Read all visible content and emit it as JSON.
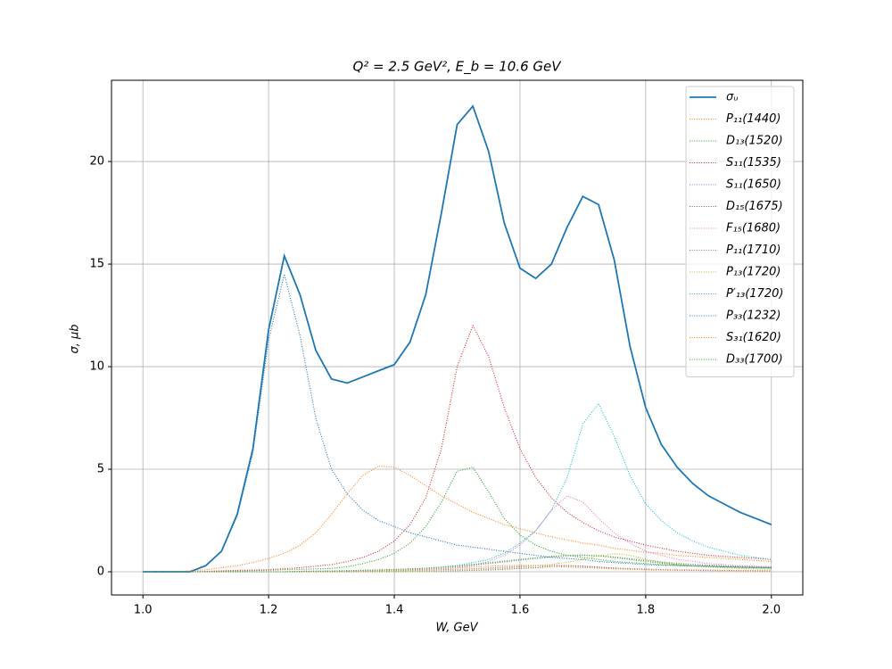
{
  "chart_data": {
    "type": "line",
    "title": "Q² = 2.5 GeV²,  E_b = 10.6 GeV",
    "xlabel": "W, GeV",
    "ylabel": "σ, μb",
    "xlim": [
      0.95,
      2.05
    ],
    "ylim": [
      -1.13,
      23.96
    ],
    "xticks": [
      {
        "value": 1,
        "label": "1.0"
      },
      1.2,
      1.4,
      1.6,
      1.8,
      {
        "value": 2,
        "label": "2.0"
      }
    ],
    "yticks": [
      0,
      5,
      10,
      15,
      20
    ],
    "grid": true,
    "legend": "upper right",
    "x": [
      1,
      1.025,
      1.05,
      1.075,
      1.1,
      1.125,
      1.15,
      1.175,
      1.2,
      1.225,
      1.25,
      1.275,
      1.3,
      1.325,
      1.35,
      1.375,
      1.4,
      1.425,
      1.45,
      1.475,
      1.5,
      1.525,
      1.55,
      1.575,
      1.6,
      1.625,
      1.65,
      1.675,
      1.7,
      1.725,
      1.75,
      1.775,
      1.8,
      1.825,
      1.85,
      1.875,
      1.9,
      1.925,
      1.95,
      1.975,
      2
    ],
    "series": [
      {
        "name": "σᵤ",
        "color": "#1f77b4",
        "style": "solid",
        "values": [
          0,
          0,
          0,
          0,
          0.3,
          1.0,
          2.8,
          6.0,
          11.8,
          15.4,
          13.5,
          10.8,
          9.4,
          9.2,
          9.5,
          9.8,
          10.1,
          11.2,
          13.5,
          17.5,
          21.8,
          22.7,
          20.5,
          17.0,
          14.8,
          14.3,
          15.0,
          16.8,
          18.3,
          17.9,
          15.2,
          11.0,
          8.0,
          6.2,
          5.1,
          4.3,
          3.7,
          3.3,
          2.9,
          2.6,
          2.3
        ]
      },
      {
        "name": "P₁₁(1440)",
        "color": "#ff7f0e",
        "style": "dotted",
        "values": [
          0,
          0,
          0,
          0.05,
          0.1,
          0.2,
          0.3,
          0.45,
          0.65,
          0.9,
          1.3,
          1.9,
          2.8,
          3.8,
          4.7,
          5.15,
          5.1,
          4.7,
          4.2,
          3.7,
          3.3,
          2.9,
          2.6,
          2.3,
          2.1,
          1.9,
          1.7,
          1.55,
          1.4,
          1.3,
          1.15,
          1.05,
          0.95,
          0.9,
          0.8,
          0.75,
          0.7,
          0.65,
          0.6,
          0.55,
          0.5
        ]
      },
      {
        "name": "D₁₃(1520)",
        "color": "#2ca02c",
        "style": "dotted",
        "values": [
          0,
          0,
          0,
          0,
          0,
          0.02,
          0.04,
          0.06,
          0.08,
          0.1,
          0.12,
          0.14,
          0.16,
          0.25,
          0.4,
          0.6,
          0.9,
          1.4,
          2.2,
          3.4,
          4.9,
          5.1,
          3.9,
          2.6,
          1.8,
          1.3,
          1.0,
          0.8,
          0.7,
          0.6,
          0.5,
          0.45,
          0.4,
          0.35,
          0.32,
          0.3,
          0.28,
          0.26,
          0.24,
          0.22,
          0.2
        ]
      },
      {
        "name": "S₁₁(1535)",
        "color": "#d62728",
        "style": "dotted",
        "values": [
          0,
          0,
          0,
          0,
          0.02,
          0.05,
          0.07,
          0.09,
          0.1,
          0.15,
          0.2,
          0.27,
          0.35,
          0.5,
          0.7,
          1.0,
          1.5,
          2.3,
          3.6,
          6.0,
          10.0,
          12.0,
          10.5,
          8.0,
          6.0,
          4.6,
          3.6,
          2.9,
          2.4,
          2.0,
          1.7,
          1.5,
          1.3,
          1.15,
          1.0,
          0.9,
          0.8,
          0.75,
          0.7,
          0.65,
          0.6
        ]
      },
      {
        "name": "S₁₁(1650)",
        "color": "#9467bd",
        "style": "dotted",
        "values": [
          0,
          0,
          0,
          0,
          0,
          0,
          0,
          0,
          0,
          0,
          0,
          0,
          0.01,
          0.02,
          0.03,
          0.04,
          0.05,
          0.06,
          0.08,
          0.1,
          0.12,
          0.15,
          0.18,
          0.22,
          0.26,
          0.3,
          0.32,
          0.3,
          0.26,
          0.22,
          0.18,
          0.15,
          0.13,
          0.11,
          0.1,
          0.09,
          0.08,
          0.07,
          0.06,
          0.06,
          0.05
        ]
      },
      {
        "name": "D₁₅(1675)",
        "color": "#8c564b",
        "style": "dotted",
        "values": [
          0,
          0,
          0,
          0,
          0,
          0,
          0,
          0,
          0,
          0,
          0,
          0,
          0,
          0,
          0,
          0,
          0.01,
          0.02,
          0.03,
          0.04,
          0.05,
          0.07,
          0.09,
          0.12,
          0.16,
          0.2,
          0.25,
          0.3,
          0.28,
          0.23,
          0.18,
          0.14,
          0.11,
          0.09,
          0.08,
          0.07,
          0.06,
          0.05,
          0.05,
          0.04,
          0.04
        ]
      },
      {
        "name": "F₁₅(1680)",
        "color": "#e377c2",
        "style": "dotted",
        "values": [
          0,
          0,
          0,
          0,
          0,
          0,
          0,
          0,
          0,
          0,
          0,
          0,
          0,
          0,
          0.02,
          0.04,
          0.06,
          0.08,
          0.11,
          0.15,
          0.2,
          0.3,
          0.5,
          0.8,
          1.3,
          2.0,
          3.0,
          3.7,
          3.4,
          2.6,
          1.9,
          1.4,
          1.0,
          0.8,
          0.6,
          0.5,
          0.4,
          0.35,
          0.3,
          0.27,
          0.25
        ]
      },
      {
        "name": "P₁₁(1710)",
        "color": "#7f7f7f",
        "style": "dotted",
        "values": [
          0,
          0,
          0,
          0,
          0,
          0,
          0,
          0,
          0,
          0,
          0.02,
          0.03,
          0.04,
          0.05,
          0.07,
          0.09,
          0.11,
          0.14,
          0.17,
          0.21,
          0.26,
          0.32,
          0.4,
          0.48,
          0.57,
          0.65,
          0.72,
          0.78,
          0.8,
          0.78,
          0.72,
          0.64,
          0.56,
          0.48,
          0.42,
          0.37,
          0.33,
          0.29,
          0.26,
          0.24,
          0.22
        ]
      },
      {
        "name": "P₁₃(1720)",
        "color": "#bcbd22",
        "style": "dotted",
        "values": [
          0,
          0,
          0,
          0,
          0,
          0,
          0,
          0,
          0,
          0,
          0,
          0,
          0,
          0,
          0,
          0,
          0.01,
          0.02,
          0.03,
          0.05,
          0.07,
          0.1,
          0.13,
          0.17,
          0.22,
          0.28,
          0.36,
          0.46,
          0.6,
          0.78,
          0.88,
          0.8,
          0.62,
          0.46,
          0.35,
          0.28,
          0.23,
          0.19,
          0.16,
          0.14,
          0.12
        ]
      },
      {
        "name": "P′₁₃(1720)",
        "color": "#17becf",
        "style": "dotted",
        "values": [
          0,
          0,
          0,
          0,
          0,
          0,
          0,
          0,
          0,
          0,
          0,
          0,
          0,
          0,
          0.02,
          0.04,
          0.06,
          0.09,
          0.15,
          0.22,
          0.3,
          0.45,
          0.6,
          0.9,
          1.4,
          2.0,
          3.0,
          4.6,
          7.2,
          8.2,
          6.6,
          4.7,
          3.3,
          2.5,
          1.9,
          1.5,
          1.2,
          1.0,
          0.8,
          0.7,
          0.6
        ]
      },
      {
        "name": "P₃₃(1232)",
        "color": "#1f77b4",
        "style": "dotted",
        "values": [
          0,
          0,
          0,
          0,
          0.3,
          1.0,
          2.7,
          5.8,
          11.3,
          14.5,
          11.5,
          7.5,
          5.0,
          3.8,
          3.0,
          2.5,
          2.2,
          1.9,
          1.7,
          1.5,
          1.3,
          1.2,
          1.1,
          1.0,
          0.9,
          0.8,
          0.7,
          0.65,
          0.6,
          0.5,
          0.45,
          0.4,
          0.35,
          0.32,
          0.3,
          0.28,
          0.26,
          0.24,
          0.22,
          0.21,
          0.2
        ]
      },
      {
        "name": "S₃₁(1620)",
        "color": "#ff7f0e",
        "style": "dotted",
        "values": [
          0,
          0,
          0,
          0,
          0,
          0,
          0,
          0,
          0,
          0,
          0,
          0,
          0.01,
          0.02,
          0.03,
          0.05,
          0.07,
          0.09,
          0.12,
          0.15,
          0.19,
          0.23,
          0.27,
          0.3,
          0.32,
          0.3,
          0.27,
          0.23,
          0.2,
          0.17,
          0.14,
          0.12,
          0.1,
          0.09,
          0.08,
          0.07,
          0.06,
          0.05,
          0.05,
          0.04,
          0.04
        ]
      },
      {
        "name": "D₃₃(1700)",
        "color": "#2ca02c",
        "style": "dotted",
        "values": [
          0,
          0,
          0,
          0,
          0,
          0,
          0,
          0,
          0,
          0,
          0.02,
          0.03,
          0.04,
          0.05,
          0.07,
          0.09,
          0.11,
          0.14,
          0.18,
          0.23,
          0.29,
          0.36,
          0.44,
          0.52,
          0.6,
          0.68,
          0.75,
          0.8,
          0.82,
          0.78,
          0.7,
          0.6,
          0.5,
          0.42,
          0.36,
          0.31,
          0.27,
          0.24,
          0.21,
          0.19,
          0.17
        ]
      }
    ]
  }
}
